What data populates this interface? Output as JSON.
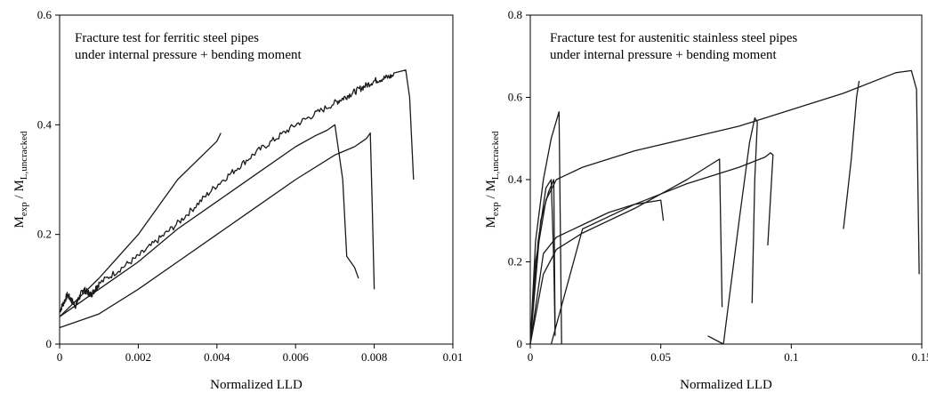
{
  "chart_data": [
    {
      "type": "line",
      "title_lines": [
        "Fracture test for ferritic steel pipes",
        "under internal pressure + bending moment"
      ],
      "xlabel": "Normalized LLD",
      "ylabel": {
        "main": "M",
        "sub1": "exp",
        "mid": " / M",
        "sub2": "L,uncracked"
      },
      "xlim": [
        0,
        0.01
      ],
      "ylim": [
        0,
        0.6
      ],
      "xticks": [
        0,
        0.002,
        0.004,
        0.006,
        0.008,
        0.01
      ],
      "yticks": [
        0,
        0.2,
        0.4,
        0.6
      ],
      "xtick_labels": [
        "0",
        "0.002",
        "0.004",
        "0.006",
        "0.008",
        "0.01"
      ],
      "ytick_labels": [
        "0",
        "0.2",
        "0.4",
        "0.6"
      ],
      "grid": false,
      "legend": "none",
      "series": [
        {
          "x": [
            0,
            0.001,
            0.002,
            0.003,
            0.004,
            0.0041
          ],
          "y": [
            0.05,
            0.12,
            0.2,
            0.3,
            0.37,
            0.385
          ],
          "noise": 0
        },
        {
          "x": [
            0,
            0.0002,
            0.0004,
            0.0006,
            0.0008,
            0.001,
            0.002,
            0.003,
            0.004,
            0.005,
            0.006,
            0.007,
            0.0075,
            0.008,
            0.0085,
            0.0088,
            0.0089,
            0.009
          ],
          "y": [
            0.06,
            0.09,
            0.07,
            0.1,
            0.09,
            0.11,
            0.16,
            0.22,
            0.29,
            0.35,
            0.4,
            0.44,
            0.46,
            0.48,
            0.49,
            0.5,
            0.45,
            0.3
          ],
          "noise": 0.006
        },
        {
          "x": [
            0,
            0.001,
            0.002,
            0.003,
            0.004,
            0.005,
            0.006,
            0.0065,
            0.0068,
            0.007,
            0.0072,
            0.0073,
            0.0075,
            0.0076
          ],
          "y": [
            0.05,
            0.1,
            0.15,
            0.21,
            0.26,
            0.31,
            0.36,
            0.38,
            0.39,
            0.4,
            0.3,
            0.16,
            0.14,
            0.12
          ],
          "noise": 0
        },
        {
          "x": [
            0,
            0.001,
            0.002,
            0.003,
            0.004,
            0.005,
            0.006,
            0.007,
            0.0075,
            0.0078,
            0.0079,
            0.00795,
            0.008
          ],
          "y": [
            0.03,
            0.055,
            0.1,
            0.15,
            0.2,
            0.25,
            0.3,
            0.345,
            0.36,
            0.375,
            0.385,
            0.25,
            0.1
          ],
          "noise": 0
        }
      ]
    },
    {
      "type": "line",
      "title_lines": [
        "Fracture test for austenitic stainless steel pipes",
        "under internal pressure + bending moment"
      ],
      "xlabel": "Normalized LLD",
      "ylabel": {
        "main": "M",
        "sub1": "exp",
        "mid": " / M",
        "sub2": "L,uncracked"
      },
      "xlim": [
        0,
        0.15
      ],
      "ylim": [
        0,
        0.8
      ],
      "xticks": [
        0,
        0.05,
        0.1,
        0.15
      ],
      "yticks": [
        0,
        0.2,
        0.4,
        0.6,
        0.8
      ],
      "xtick_labels": [
        "0",
        "0.05",
        "0.1",
        "0.15"
      ],
      "ytick_labels": [
        "0",
        "0.2",
        "0.4",
        "0.6",
        "0.8"
      ],
      "grid": false,
      "legend": "none",
      "series": [
        {
          "x": [
            0,
            0.002,
            0.005,
            0.008,
            0.011,
            0.0115,
            0.012
          ],
          "y": [
            0,
            0.25,
            0.4,
            0.5,
            0.565,
            0.3,
            0.0
          ],
          "noise": 0
        },
        {
          "x": [
            0,
            0.002,
            0.006,
            0.01,
            0.02,
            0.04,
            0.06,
            0.08,
            0.1,
            0.12,
            0.14,
            0.146,
            0.148,
            0.149
          ],
          "y": [
            0,
            0.2,
            0.35,
            0.4,
            0.43,
            0.47,
            0.5,
            0.53,
            0.57,
            0.61,
            0.66,
            0.665,
            0.62,
            0.17
          ],
          "noise": 0
        },
        {
          "x": [
            0,
            0.003,
            0.006,
            0.008,
            0.009,
            0.0095
          ],
          "y": [
            0,
            0.25,
            0.38,
            0.4,
            0.2,
            0.02
          ],
          "noise": 0
        },
        {
          "x": [
            0,
            0.004,
            0.007,
            0.009,
            0.0095
          ],
          "y": [
            0,
            0.3,
            0.37,
            0.4,
            0.03
          ],
          "noise": 0
        },
        {
          "x": [
            0,
            0.005,
            0.01,
            0.02,
            0.03,
            0.04,
            0.05,
            0.051
          ],
          "y": [
            0,
            0.22,
            0.26,
            0.29,
            0.32,
            0.34,
            0.35,
            0.3
          ],
          "noise": 0
        },
        {
          "x": [
            0,
            0.005,
            0.01,
            0.02,
            0.04,
            0.06,
            0.07,
            0.0725,
            0.0735
          ],
          "y": [
            0,
            0.17,
            0.23,
            0.27,
            0.33,
            0.4,
            0.44,
            0.45,
            0.09
          ],
          "noise": 0
        },
        {
          "x": [
            0.008,
            0.02,
            0.04,
            0.06,
            0.08,
            0.09,
            0.092,
            0.093,
            0.091
          ],
          "y": [
            0.0,
            0.28,
            0.34,
            0.39,
            0.43,
            0.455,
            0.465,
            0.46,
            0.24
          ],
          "noise": 0
        },
        {
          "x": [
            0.068,
            0.074,
            0.076,
            0.08,
            0.084,
            0.086,
            0.087,
            0.086,
            0.085
          ],
          "y": [
            0.02,
            0.0,
            0.1,
            0.3,
            0.49,
            0.55,
            0.54,
            0.4,
            0.1
          ],
          "noise": 0
        },
        {
          "x": [
            0.12,
            0.123,
            0.125,
            0.126
          ],
          "y": [
            0.28,
            0.45,
            0.6,
            0.64
          ],
          "noise": 0
        }
      ]
    }
  ]
}
